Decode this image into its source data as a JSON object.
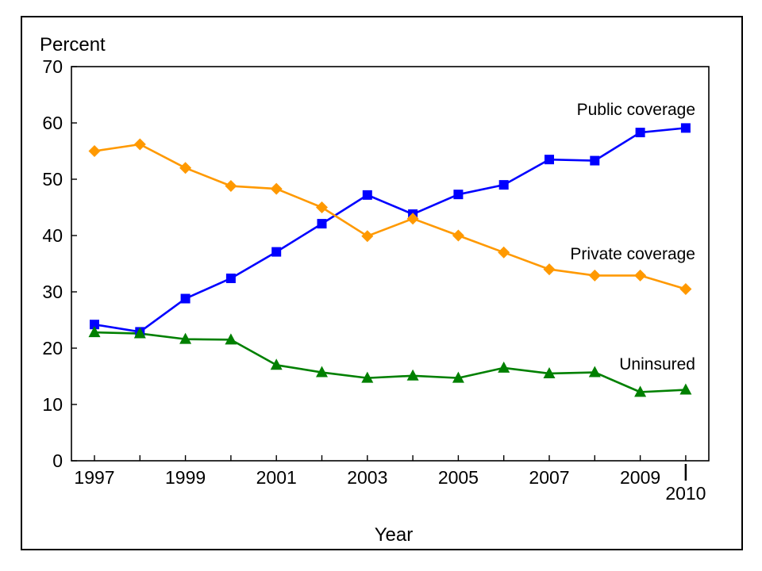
{
  "chart_data": {
    "type": "line",
    "title": "",
    "xlabel": "Year",
    "ylabel": "Percent",
    "ylim": [
      0,
      70
    ],
    "yticks": [
      0,
      10,
      20,
      30,
      40,
      50,
      60,
      70
    ],
    "x": [
      1997,
      1998,
      1999,
      2000,
      2001,
      2002,
      2003,
      2004,
      2005,
      2006,
      2007,
      2008,
      2009,
      2010
    ],
    "xtick_labels": [
      "1997",
      "1999",
      "2001",
      "2003",
      "2005",
      "2007",
      "2009",
      "2010"
    ],
    "series": [
      {
        "name": "Public coverage",
        "color": "#0000ff",
        "marker": "square",
        "values": [
          24.2,
          22.9,
          28.8,
          32.4,
          37.1,
          42.1,
          47.2,
          43.8,
          47.3,
          49.0,
          53.5,
          53.3,
          58.3,
          59.1
        ]
      },
      {
        "name": "Private coverage",
        "color": "#ff9900",
        "marker": "diamond",
        "values": [
          55.0,
          56.2,
          52.0,
          48.8,
          48.3,
          45.0,
          39.9,
          43.0,
          40.0,
          37.0,
          34.0,
          32.9,
          32.9,
          30.5
        ]
      },
      {
        "name": "Uninsured",
        "color": "#008000",
        "marker": "triangle",
        "values": [
          22.8,
          22.6,
          21.6,
          21.5,
          17.0,
          15.7,
          14.7,
          15.1,
          14.7,
          16.5,
          15.5,
          15.7,
          12.2,
          12.6
        ]
      }
    ]
  }
}
